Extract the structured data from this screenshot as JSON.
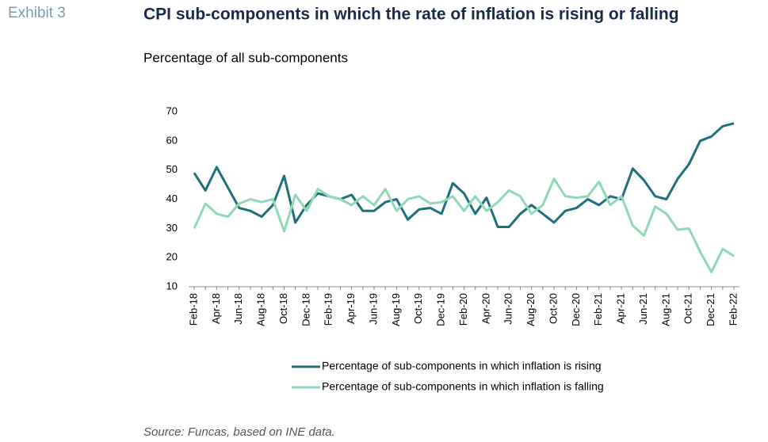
{
  "chart_data": {
    "type": "line",
    "label": "Exhibit 3",
    "title": "CPI sub-components in which the rate of inflation is rising or falling",
    "subtitle": "Percentage of all sub-components",
    "source": "Source: Funcas, based on INE data.",
    "categories": [
      "Feb-18",
      null,
      "Apr-18",
      null,
      "Jun-18",
      null,
      "Aug-18",
      null,
      "Oct-18",
      null,
      "Dec-18",
      null,
      "Feb-19",
      null,
      "Apr-19",
      null,
      "Jun-19",
      null,
      "Aug-19",
      null,
      "Oct-19",
      null,
      "Dec-19",
      null,
      "Feb-20",
      null,
      "Apr-20",
      null,
      "Jun-20",
      null,
      "Aug-20",
      null,
      "Oct-20",
      null,
      "Dec-20",
      null,
      "Feb-21",
      null,
      "Apr-21",
      null,
      "Jun-21",
      null,
      "Aug-21",
      null,
      "Oct-21",
      null,
      "Dec-21",
      null,
      "Feb-22"
    ],
    "series": [
      {
        "name": "Percentage of sub-components in which inflation is rising",
        "color": "#1f7078",
        "values": [
          49,
          43,
          51,
          44,
          37,
          36,
          34,
          38,
          48,
          32,
          38,
          42,
          41,
          40,
          41.5,
          36,
          36,
          39,
          40,
          33,
          36.5,
          37,
          35,
          45.5,
          42,
          35,
          40.5,
          30.5,
          30.5,
          35,
          38,
          35,
          32,
          36,
          37,
          40,
          38,
          41,
          40,
          50.5,
          46.5,
          41,
          40,
          47,
          52,
          60,
          61.5,
          65,
          66
        ]
      },
      {
        "name": "Percentage of sub-components in which inflation is falling",
        "color": "#8fd9b6",
        "values": [
          30,
          38.5,
          35,
          34,
          38.5,
          40,
          39,
          40,
          29,
          41.5,
          36,
          43.5,
          41,
          40,
          38,
          41,
          38,
          43.5,
          36,
          40,
          41,
          38.5,
          39,
          41,
          36,
          41,
          36,
          39,
          43,
          41,
          35,
          38,
          47,
          41,
          40.5,
          41,
          46,
          38,
          41,
          31,
          27.5,
          37.5,
          35,
          29.5,
          30,
          22,
          15,
          23,
          20.5
        ]
      }
    ],
    "ylim": [
      10,
      70
    ],
    "yticks": [
      10,
      20,
      30,
      40,
      50,
      60,
      70
    ]
  }
}
